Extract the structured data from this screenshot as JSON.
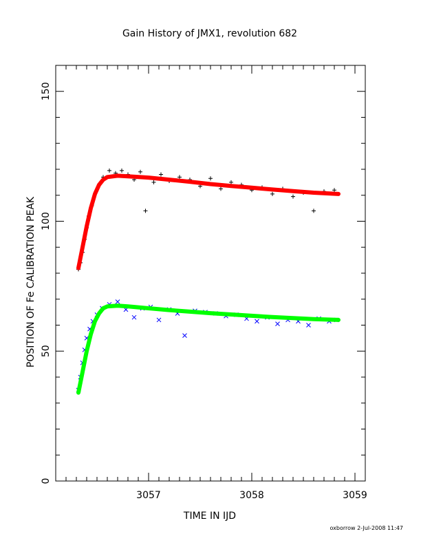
{
  "chart_data": {
    "type": "scatter",
    "title": "Gain History of JMX1, revolution 682",
    "xlabel": "TIME IN IJD",
    "ylabel": "POSITION OF Fe CALIBRATION PEAK",
    "footer": "oxborrow  2-Jul-2008 11:47",
    "xlim": [
      3056.1,
      3059.1
    ],
    "ylim": [
      0,
      160
    ],
    "xticks": [
      3057,
      3058,
      3059
    ],
    "xtick_labels": [
      "3057",
      "3058",
      "3059"
    ],
    "yticks": [
      0,
      50,
      100,
      150
    ],
    "ytick_labels": [
      "0",
      "50",
      "100",
      "150"
    ],
    "grid": false,
    "series": [
      {
        "marker": "+",
        "color": "#000000",
        "values": [
          [
            3056.32,
            81.5
          ],
          [
            3056.34,
            84.0
          ],
          [
            3056.36,
            88.0
          ],
          [
            3056.38,
            93.0
          ],
          [
            3056.4,
            97.5
          ],
          [
            3056.42,
            102.0
          ],
          [
            3056.45,
            106.0
          ],
          [
            3056.48,
            110.5
          ],
          [
            3056.52,
            114.0
          ],
          [
            3056.56,
            117.0
          ],
          [
            3056.62,
            119.5
          ],
          [
            3056.68,
            118.5
          ],
          [
            3056.74,
            119.5
          ],
          [
            3056.8,
            118.0
          ],
          [
            3056.86,
            116.0
          ],
          [
            3056.92,
            119.0
          ],
          [
            3056.97,
            104.0
          ],
          [
            3057.05,
            115.0
          ],
          [
            3057.12,
            118.0
          ],
          [
            3057.2,
            115.5
          ],
          [
            3057.3,
            117.0
          ],
          [
            3057.4,
            116.0
          ],
          [
            3057.5,
            113.5
          ],
          [
            3057.6,
            116.5
          ],
          [
            3057.7,
            112.5
          ],
          [
            3057.8,
            115.0
          ],
          [
            3057.9,
            114.0
          ],
          [
            3058.0,
            112.0
          ],
          [
            3058.1,
            113.0
          ],
          [
            3058.2,
            110.5
          ],
          [
            3058.3,
            112.5
          ],
          [
            3058.4,
            109.5
          ],
          [
            3058.5,
            111.0
          ],
          [
            3058.6,
            104.0
          ],
          [
            3058.7,
            111.5
          ],
          [
            3058.8,
            112.0
          ]
        ]
      },
      {
        "marker": "x",
        "color": "#0000ff",
        "values": [
          [
            3056.32,
            35.0
          ],
          [
            3056.34,
            40.0
          ],
          [
            3056.36,
            45.5
          ],
          [
            3056.38,
            50.5
          ],
          [
            3056.4,
            55.0
          ],
          [
            3056.43,
            58.5
          ],
          [
            3056.46,
            61.5
          ],
          [
            3056.5,
            64.0
          ],
          [
            3056.55,
            66.5
          ],
          [
            3056.62,
            68.0
          ],
          [
            3056.7,
            69.0
          ],
          [
            3056.78,
            66.0
          ],
          [
            3056.86,
            63.0
          ],
          [
            3056.94,
            66.5
          ],
          [
            3057.02,
            67.0
          ],
          [
            3057.1,
            62.0
          ],
          [
            3057.2,
            66.0
          ],
          [
            3057.28,
            64.5
          ],
          [
            3057.35,
            56.0
          ],
          [
            3057.45,
            65.5
          ],
          [
            3057.55,
            65.0
          ],
          [
            3057.65,
            64.5
          ],
          [
            3057.75,
            63.5
          ],
          [
            3057.85,
            64.0
          ],
          [
            3057.95,
            62.5
          ],
          [
            3058.05,
            61.5
          ],
          [
            3058.15,
            63.0
          ],
          [
            3058.25,
            60.5
          ],
          [
            3058.35,
            62.0
          ],
          [
            3058.45,
            61.5
          ],
          [
            3058.55,
            60.0
          ],
          [
            3058.65,
            62.5
          ],
          [
            3058.75,
            61.5
          ],
          [
            3058.82,
            62.0
          ]
        ]
      },
      {
        "type": "line",
        "color": "#ff0000",
        "x": [
          3056.32,
          3056.36,
          3056.4,
          3056.44,
          3056.48,
          3056.52,
          3056.56,
          3056.6,
          3056.7,
          3056.8,
          3057.0,
          3057.2,
          3057.4,
          3057.6,
          3057.8,
          3058.0,
          3058.2,
          3058.4,
          3058.6,
          3058.84
        ],
        "y": [
          82.0,
          90.0,
          98.0,
          105.0,
          110.5,
          114.0,
          116.0,
          117.0,
          117.5,
          117.3,
          116.8,
          116.0,
          115.2,
          114.3,
          113.6,
          112.9,
          112.2,
          111.6,
          111.0,
          110.5
        ]
      },
      {
        "type": "line",
        "color": "#00ff00",
        "x": [
          3056.32,
          3056.36,
          3056.4,
          3056.44,
          3056.48,
          3056.52,
          3056.56,
          3056.6,
          3056.7,
          3056.8,
          3057.0,
          3057.2,
          3057.4,
          3057.6,
          3057.8,
          3058.0,
          3058.2,
          3058.4,
          3058.6,
          3058.84
        ],
        "y": [
          34.0,
          42.0,
          50.0,
          56.5,
          61.5,
          64.5,
          66.5,
          67.2,
          67.5,
          67.2,
          66.5,
          65.8,
          65.2,
          64.6,
          64.1,
          63.6,
          63.1,
          62.7,
          62.3,
          62.0
        ]
      }
    ]
  }
}
